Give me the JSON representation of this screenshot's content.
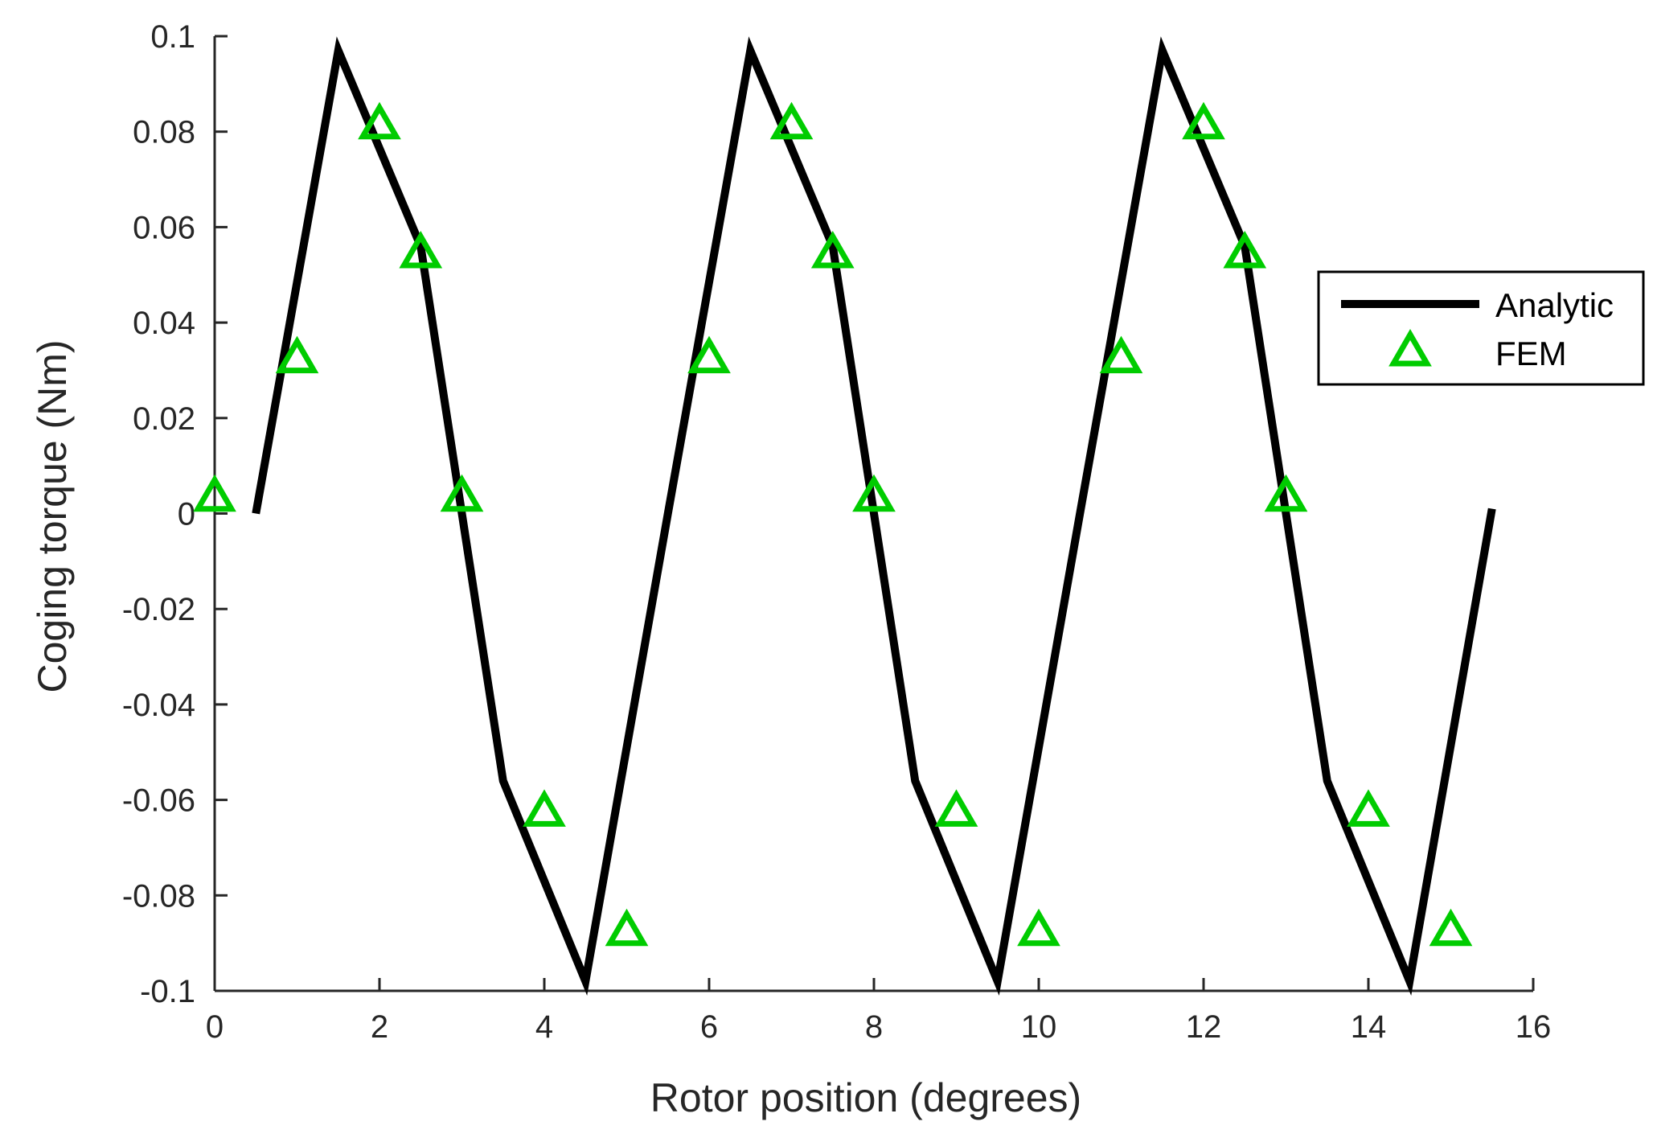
{
  "chart_data": {
    "type": "line",
    "xlabel": "Rotor position (degrees)",
    "ylabel": "Coging torque (Nm)",
    "xlim": [
      0,
      16
    ],
    "ylim": [
      -0.1,
      0.1
    ],
    "x_ticks": [
      0,
      2,
      4,
      6,
      8,
      10,
      12,
      14,
      16
    ],
    "x_tick_labels": [
      "0",
      "2",
      "4",
      "6",
      "8",
      "10",
      "12",
      "14",
      "16"
    ],
    "y_ticks": [
      -0.1,
      -0.08,
      -0.06,
      -0.04,
      -0.02,
      0,
      0.02,
      0.04,
      0.06,
      0.08,
      0.1
    ],
    "y_tick_labels": [
      "-0.1",
      "-0.08",
      "-0.06",
      "-0.04",
      "-0.02",
      "0",
      "0.02",
      "0.04",
      "0.06",
      "0.08",
      "0.1"
    ],
    "grid": false,
    "legend_position": "right",
    "series": [
      {
        "name": "Analytic",
        "style": "line",
        "color": "#000000",
        "x": [
          0.5,
          1.5,
          2.5,
          3.5,
          4.5,
          5.5,
          6.5,
          7.5,
          8.5,
          9.5,
          10.5,
          11.5,
          12.5,
          13.5,
          14.5,
          15.5
        ],
        "y": [
          0.0,
          0.097,
          0.056,
          -0.056,
          -0.098,
          0.0,
          0.097,
          0.056,
          -0.056,
          -0.098,
          0.0,
          0.097,
          0.056,
          -0.056,
          -0.098,
          0.001
        ]
      },
      {
        "name": "FEM",
        "style": "marker-triangle",
        "color": "#00cc00",
        "x": [
          0,
          1,
          2,
          2.5,
          3,
          4,
          5,
          6,
          7,
          7.5,
          8,
          9,
          10,
          11,
          12,
          12.5,
          13,
          14,
          15
        ],
        "y": [
          0.003,
          0.032,
          0.081,
          0.054,
          0.003,
          -0.063,
          -0.088,
          0.032,
          0.081,
          0.054,
          0.003,
          -0.063,
          -0.088,
          0.032,
          0.081,
          0.054,
          0.003,
          -0.063,
          -0.088
        ]
      }
    ]
  }
}
